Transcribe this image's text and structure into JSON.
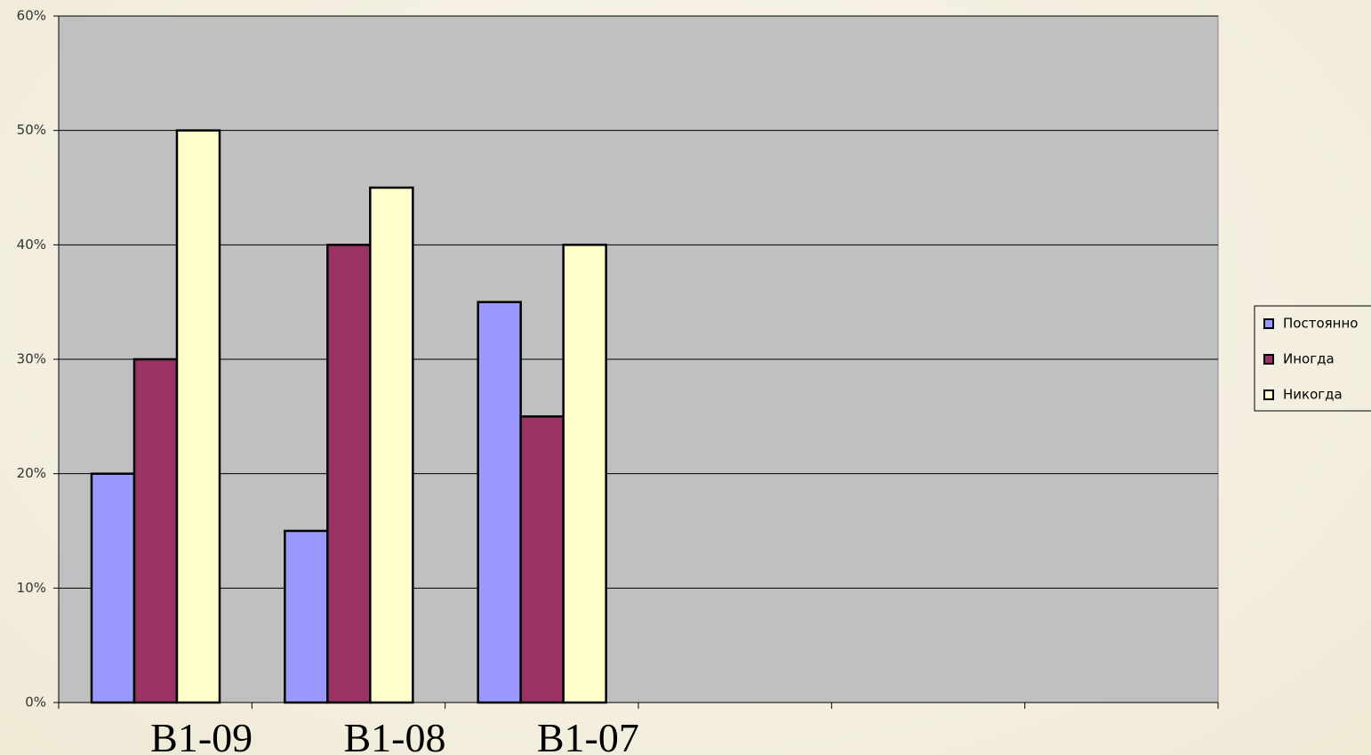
{
  "chart_data": {
    "type": "bar",
    "categories": [
      "B1-09",
      "B1-08",
      "B1-07",
      null,
      null,
      null
    ],
    "series": [
      {
        "name": "Постоянно",
        "color": "#9999ff",
        "values": [
          20,
          15,
          35,
          null,
          null,
          null
        ]
      },
      {
        "name": "Иногда",
        "color": "#993366",
        "values": [
          30,
          40,
          25,
          null,
          null,
          null
        ]
      },
      {
        "name": "Никогда",
        "color": "#ffffcc",
        "values": [
          50,
          45,
          40,
          null,
          null,
          null
        ]
      }
    ],
    "ylim": [
      0,
      60
    ],
    "yticks": [
      {
        "value": 0,
        "label": "0%"
      },
      {
        "value": 10,
        "label": "10%"
      },
      {
        "value": 20,
        "label": "20%"
      },
      {
        "value": 30,
        "label": "30%"
      },
      {
        "value": 40,
        "label": "40%"
      },
      {
        "value": 50,
        "label": "50%"
      },
      {
        "value": 60,
        "label": "60%"
      }
    ],
    "grid": true,
    "plot_color": "#c0c0c0",
    "legend": "right"
  }
}
